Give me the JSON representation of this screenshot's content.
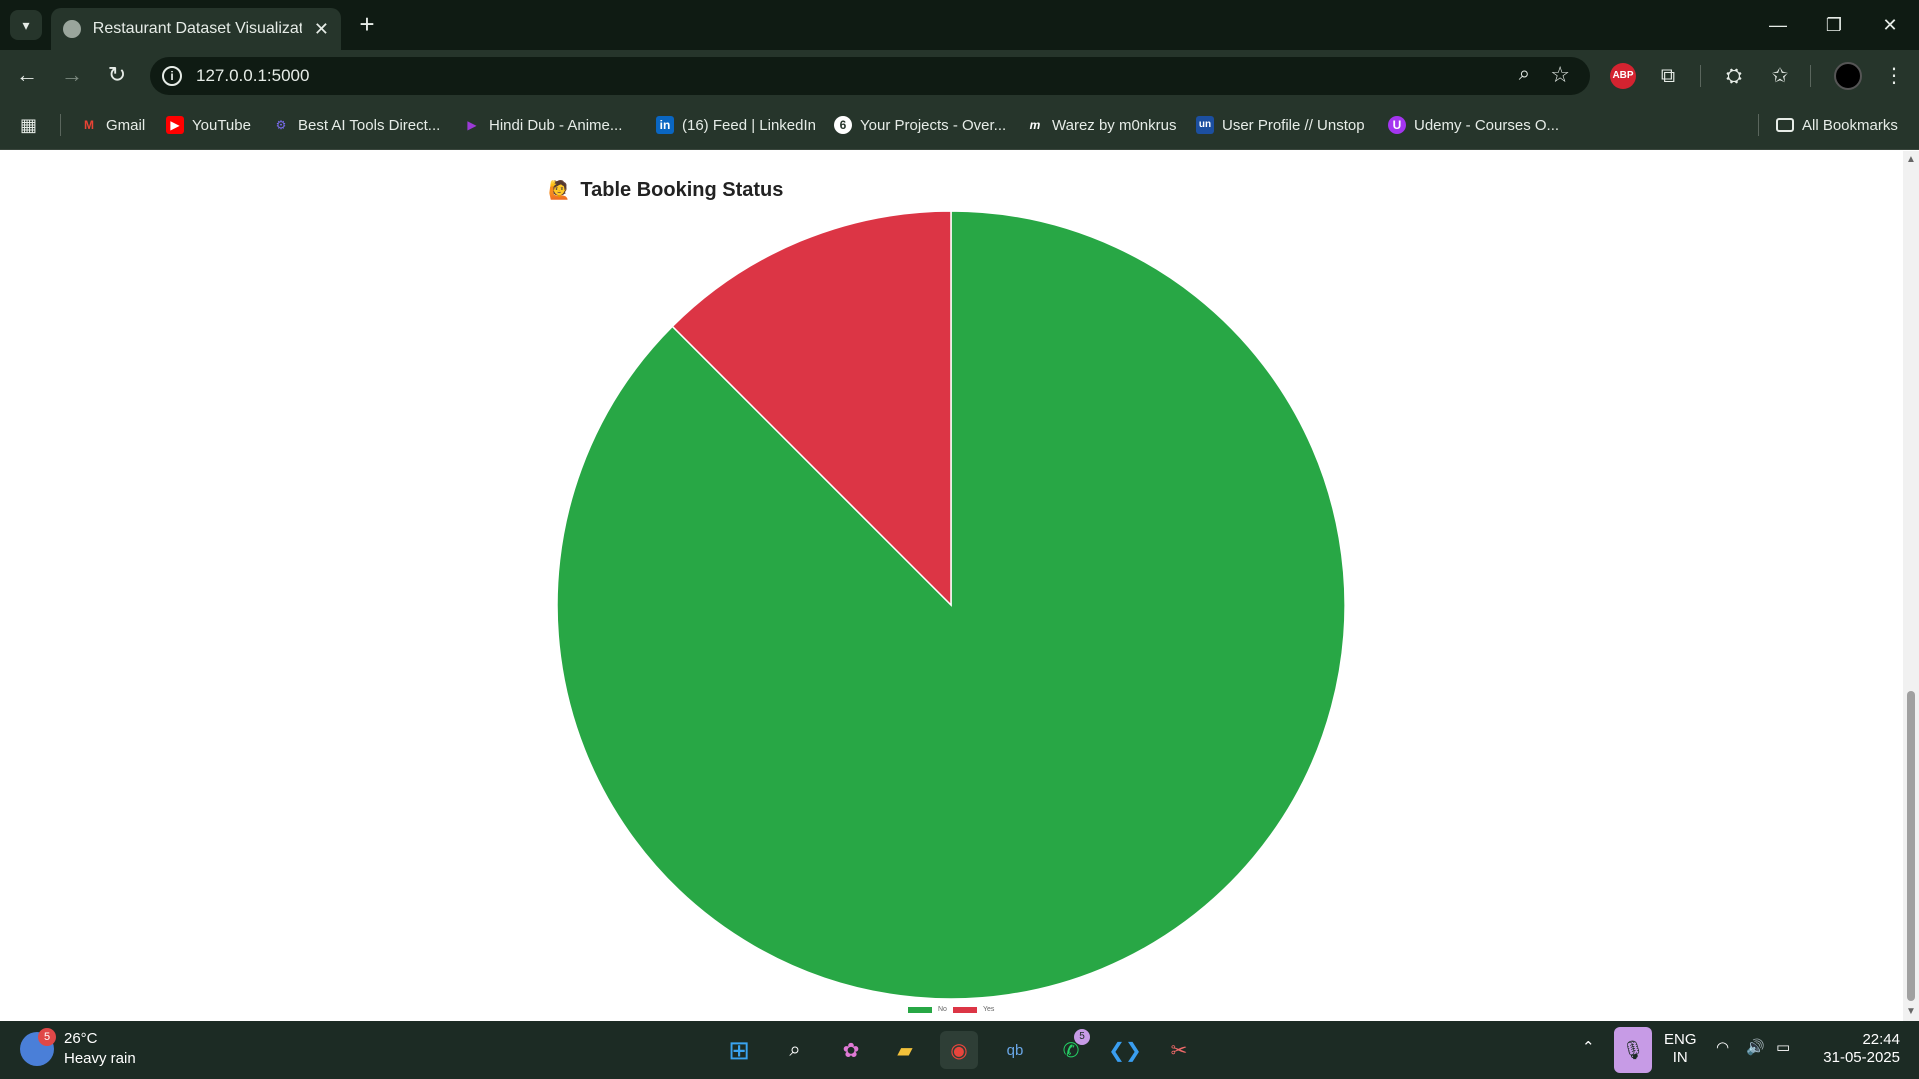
{
  "browser": {
    "tab_title": "Restaurant Dataset Visualization",
    "url": "127.0.0.1:5000",
    "bookmarks": [
      {
        "label": "Gmail",
        "icon": "gmail-icon"
      },
      {
        "label": "YouTube",
        "icon": "youtube-icon"
      },
      {
        "label": "Best AI Tools Direct...",
        "icon": "ai-tools-icon"
      },
      {
        "label": "Hindi Dub - Anime...",
        "icon": "play-icon"
      },
      {
        "label": "(16) Feed | LinkedIn",
        "icon": "linkedin-icon"
      },
      {
        "label": "Your Projects - Over...",
        "icon": "projects-icon"
      },
      {
        "label": "Warez by m0nkrus",
        "icon": "m-icon"
      },
      {
        "label": "User Profile // Unstop",
        "icon": "unstop-icon"
      },
      {
        "label": "Udemy - Courses O...",
        "icon": "udemy-icon"
      }
    ],
    "all_bookmarks": "All Bookmarks",
    "abp_label": "ABP"
  },
  "page": {
    "chart_title": "Table Booking Status",
    "chart_emoji": "🙋"
  },
  "chart_data": {
    "type": "pie",
    "title": "Table Booking Status",
    "labels": [
      "No",
      "Yes"
    ],
    "values": [
      87.5,
      12.5
    ],
    "colors": [
      "#28a745",
      "#dc3545"
    ],
    "legend_position": "bottom"
  },
  "taskbar": {
    "weather_temp": "26°C",
    "weather_desc": "Heavy rain",
    "weather_badge": "5",
    "whatsapp_badge": "5",
    "lang_top": "ENG",
    "lang_bottom": "IN",
    "time": "22:44",
    "date": "31-05-2025"
  }
}
